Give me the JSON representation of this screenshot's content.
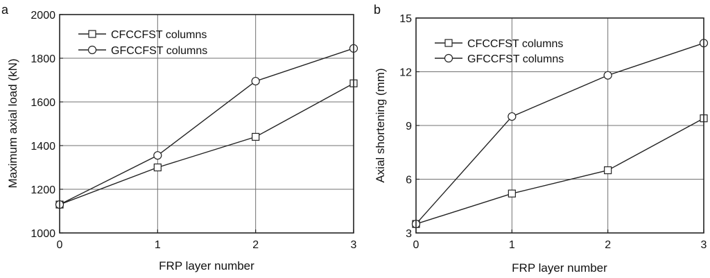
{
  "chart_data": [
    {
      "type": "line",
      "panel_label": "a",
      "xlabel": "FRP layer number",
      "ylabel": "Maximum axial load (kN)",
      "xlim": [
        0,
        3
      ],
      "ylim": [
        1000,
        2000
      ],
      "x_ticks": [
        "0",
        "1",
        "2",
        "3"
      ],
      "y_ticks": [
        "1000",
        "1200",
        "1400",
        "1600",
        "1800",
        "2000"
      ],
      "grid": true,
      "legend_position": "top-left",
      "x": [
        0,
        1,
        2,
        3
      ],
      "series": [
        {
          "name": "CFCCFST columns",
          "marker": "square",
          "values": [
            1130,
            1300,
            1440,
            1685
          ]
        },
        {
          "name": "GFCCFST columns",
          "marker": "circle",
          "values": [
            1130,
            1355,
            1695,
            1845
          ]
        }
      ]
    },
    {
      "type": "line",
      "panel_label": "b",
      "xlabel": "FRP layer number",
      "ylabel": "Axial shortening (mm)",
      "xlim": [
        0,
        3
      ],
      "ylim": [
        3,
        15
      ],
      "x_ticks": [
        "0",
        "1",
        "2",
        "3"
      ],
      "y_ticks": [
        "3",
        "6",
        "9",
        "12",
        "15"
      ],
      "grid": true,
      "legend_position": "top-left",
      "x": [
        0,
        1,
        2,
        3
      ],
      "series": [
        {
          "name": "CFCCFST columns",
          "marker": "square",
          "values": [
            3.5,
            5.2,
            6.5,
            9.4
          ]
        },
        {
          "name": "GFCCFST columns",
          "marker": "circle",
          "values": [
            3.5,
            9.5,
            11.8,
            13.6
          ]
        }
      ]
    }
  ]
}
